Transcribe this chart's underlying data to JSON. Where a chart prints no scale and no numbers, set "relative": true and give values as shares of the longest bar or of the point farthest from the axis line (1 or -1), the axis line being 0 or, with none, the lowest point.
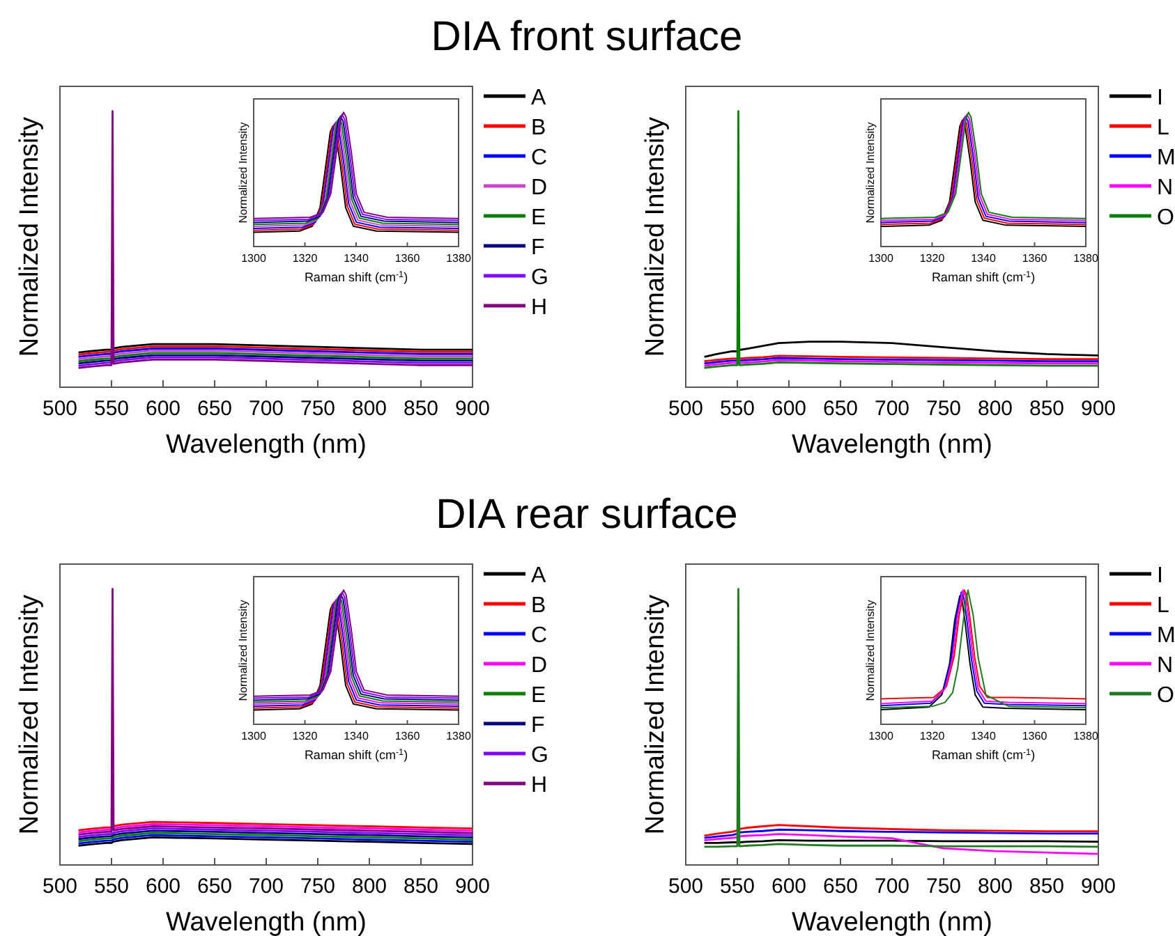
{
  "chart_data": [
    {
      "type": "line",
      "title": "DIA front surface",
      "xlabel": "Wavelength (nm)",
      "ylabel": "Normalized Intensity",
      "relative": true,
      "legend": "right",
      "xlim": [
        500,
        900
      ],
      "xticks": [
        500,
        550,
        600,
        650,
        700,
        750,
        800,
        850,
        900
      ],
      "x": [
        518,
        530,
        545,
        550,
        551,
        552,
        560,
        575,
        590,
        620,
        650,
        700,
        750,
        800,
        850,
        900
      ],
      "series": [
        {
          "name": "A",
          "color": "#000000",
          "values": [
            0.126,
            0.131,
            0.136,
            0.136,
            null,
            0.141,
            0.146,
            0.151,
            0.156,
            0.156,
            0.156,
            0.151,
            0.146,
            0.141,
            0.136,
            0.136
          ]
        },
        {
          "name": "B",
          "color": "#ff0000",
          "values": [
            0.118,
            0.123,
            0.128,
            0.128,
            null,
            0.133,
            0.138,
            0.143,
            0.148,
            0.148,
            0.148,
            0.143,
            0.138,
            0.133,
            0.128,
            0.128
          ]
        },
        {
          "name": "C",
          "color": "#0000ff",
          "values": [
            0.11,
            0.115,
            0.12,
            0.12,
            null,
            0.125,
            0.13,
            0.135,
            0.14,
            0.14,
            0.14,
            0.135,
            0.13,
            0.125,
            0.12,
            0.12
          ]
        },
        {
          "name": "D",
          "color": "#cc44cc",
          "values": [
            0.102,
            0.107,
            0.112,
            0.112,
            null,
            0.117,
            0.122,
            0.127,
            0.132,
            0.132,
            0.132,
            0.127,
            0.122,
            0.117,
            0.112,
            0.112
          ]
        },
        {
          "name": "E",
          "color": "#008000",
          "values": [
            0.094,
            0.099,
            0.104,
            0.104,
            null,
            0.109,
            0.114,
            0.119,
            0.124,
            0.124,
            0.124,
            0.119,
            0.114,
            0.109,
            0.104,
            0.104
          ]
        },
        {
          "name": "F",
          "color": "#000080",
          "values": [
            0.086,
            0.091,
            0.096,
            0.096,
            null,
            0.101,
            0.106,
            0.111,
            0.116,
            0.116,
            0.116,
            0.111,
            0.106,
            0.101,
            0.096,
            0.096
          ]
        },
        {
          "name": "G",
          "color": "#8000ff",
          "values": [
            0.078,
            0.083,
            0.088,
            0.088,
            null,
            0.093,
            0.098,
            0.103,
            0.108,
            0.108,
            0.108,
            0.103,
            0.098,
            0.093,
            0.088,
            0.088
          ]
        },
        {
          "name": "H",
          "color": "#800080",
          "values": [
            0.07,
            0.075,
            0.08,
            0.08,
            1,
            0.085,
            0.09,
            0.095,
            0.1,
            0.1,
            0.1,
            0.095,
            0.09,
            0.085,
            0.08,
            0.08
          ]
        }
      ]
    },
    {
      "type": "line",
      "xlabel": "Raman shift (cm$^{-1}$)",
      "ylabel": "Normalized Intensity",
      "relative": true,
      "xlim": [
        1300,
        1380
      ],
      "xticks": [
        1300,
        1320,
        1340,
        1360,
        1380
      ],
      "series": [
        {
          "color": "#000000",
          "x": [
            1300,
            1317.9,
            1322.9,
            1325.9,
            1327.9,
            1329.9,
            1330.9,
            1331.9,
            1333.9,
            1335.9,
            1338.9,
            1347.9,
            1380
          ],
          "values": [
            0.106,
            0.115,
            0.152,
            0.29,
            0.566,
            0.851,
            0.897,
            0.86,
            0.603,
            0.29,
            0.152,
            0.115,
            0.106
          ]
        },
        {
          "color": "#ff0000",
          "x": [
            1300,
            1318.5,
            1323.5,
            1326.5,
            1328.5,
            1330.5,
            1331.5,
            1332.5,
            1334.5,
            1336.5,
            1339.5,
            1348.5,
            1380
          ],
          "values": [
            0.12,
            0.13,
            0.166,
            0.304,
            0.58,
            0.866,
            0.912,
            0.875,
            0.617,
            0.304,
            0.166,
            0.13,
            0.12
          ]
        },
        {
          "color": "#0000ff",
          "x": [
            1300,
            1319.1,
            1324.1,
            1327.1,
            1329.1,
            1331.1,
            1332.1,
            1333.1,
            1335.1,
            1337.1,
            1340.1,
            1349.1,
            1380
          ],
          "values": [
            0.135,
            0.144,
            0.181,
            0.319,
            0.595,
            0.88,
            0.926,
            0.89,
            0.632,
            0.319,
            0.181,
            0.144,
            0.135
          ]
        },
        {
          "color": "#cc44cc",
          "x": [
            1300,
            1319.7,
            1324.7,
            1327.7,
            1329.7,
            1331.7,
            1332.7,
            1333.7,
            1335.7,
            1337.7,
            1340.7,
            1349.7,
            1380
          ],
          "values": [
            0.15,
            0.159,
            0.196,
            0.334,
            0.61,
            0.895,
            0.941,
            0.904,
            0.647,
            0.334,
            0.196,
            0.159,
            0.15
          ]
        },
        {
          "color": "#008000",
          "x": [
            1300,
            1320.3,
            1325.3,
            1328.3,
            1330.3,
            1332.3,
            1333.3,
            1334.3,
            1336.3,
            1338.3,
            1341.3,
            1350.3,
            1380
          ],
          "values": [
            0.165,
            0.174,
            0.211,
            0.349,
            0.625,
            0.91,
            0.956,
            0.919,
            0.661,
            0.349,
            0.211,
            0.174,
            0.165
          ]
        },
        {
          "color": "#000080",
          "x": [
            1300,
            1320.9,
            1325.9,
            1328.9,
            1330.9,
            1332.9,
            1333.9,
            1334.9,
            1336.9,
            1338.9,
            1341.9,
            1350.9,
            1380
          ],
          "values": [
            0.179,
            0.189,
            0.225,
            0.363,
            0.639,
            0.925,
            0.971,
            0.934,
            0.676,
            0.363,
            0.225,
            0.189,
            0.179
          ]
        },
        {
          "color": "#8000ff",
          "x": [
            1300,
            1321.5,
            1326.5,
            1329.5,
            1331.5,
            1333.5,
            1334.5,
            1335.5,
            1337.5,
            1339.5,
            1342.5,
            1351.5,
            1380
          ],
          "values": [
            0.194,
            0.203,
            0.24,
            0.378,
            0.654,
            0.939,
            0.985,
            0.948,
            0.691,
            0.378,
            0.24,
            0.203,
            0.194
          ]
        },
        {
          "color": "#800080",
          "x": [
            1300,
            1322.1,
            1327.1,
            1330.1,
            1332.1,
            1334.1,
            1335.1,
            1336.1,
            1338.1,
            1340.1,
            1343.1,
            1352.1,
            1380
          ],
          "values": [
            0.209,
            0.218,
            0.255,
            0.393,
            0.669,
            0.954,
            1,
            0.963,
            0.706,
            0.393,
            0.255,
            0.218,
            0.209
          ]
        }
      ]
    },
    {
      "type": "line",
      "xlabel": "Wavelength (nm)",
      "ylabel": "Normalized Intensity",
      "relative": true,
      "legend": "right",
      "xlim": [
        500,
        900
      ],
      "xticks": [
        500,
        550,
        600,
        650,
        700,
        750,
        800,
        850,
        900
      ],
      "x": [
        518,
        530,
        545,
        550,
        551,
        552,
        560,
        575,
        590,
        620,
        650,
        700,
        750,
        800,
        850,
        900
      ],
      "series": [
        {
          "name": "I",
          "color": "#000000",
          "values": [
            0.11,
            0.12,
            0.13,
            0.13,
            null,
            0.135,
            0.14,
            0.15,
            0.16,
            0.165,
            0.165,
            0.16,
            0.145,
            0.13,
            0.12,
            0.115
          ]
        },
        {
          "name": "L",
          "color": "#ff0000",
          "values": [
            0.094,
            0.099,
            0.104,
            0.104,
            null,
            0.104,
            0.106,
            0.109,
            0.114,
            0.112,
            0.11,
            0.108,
            0.106,
            0.104,
            0.102,
            0.102
          ]
        },
        {
          "name": "M",
          "color": "#0000ff",
          "values": [
            0.086,
            0.091,
            0.096,
            0.096,
            null,
            0.096,
            0.098,
            0.101,
            0.106,
            0.104,
            0.102,
            0.1,
            0.098,
            0.096,
            0.094,
            0.094
          ]
        },
        {
          "name": "N",
          "color": "#ff00ff",
          "values": [
            0.078,
            0.083,
            0.088,
            0.088,
            null,
            0.088,
            0.09,
            0.093,
            0.098,
            0.096,
            0.094,
            0.092,
            0.09,
            0.088,
            0.086,
            0.086
          ]
        },
        {
          "name": "O",
          "color": "#008000",
          "values": [
            0.07,
            0.075,
            0.08,
            0.08,
            1,
            0.08,
            0.082,
            0.085,
            0.09,
            0.088,
            0.086,
            0.084,
            0.082,
            0.08,
            0.078,
            0.078
          ]
        }
      ]
    },
    {
      "type": "line",
      "xlabel": "Raman shift (cm$^{-1}$)",
      "ylabel": "Normalized Intensity",
      "relative": true,
      "xlim": [
        1300,
        1380
      ],
      "xticks": [
        1300,
        1320,
        1340,
        1360,
        1380
      ],
      "series": [
        {
          "color": "#000000",
          "x": [
            1300,
            1318.8,
            1323.8,
            1326.8,
            1328.8,
            1330.8,
            1331.8,
            1332.8,
            1334.8,
            1336.8,
            1339.8,
            1348.8,
            1380
          ],
          "values": [
            0.15,
            0.159,
            0.196,
            0.334,
            0.61,
            0.895,
            0.941,
            0.904,
            0.647,
            0.334,
            0.196,
            0.159,
            0.15
          ]
        },
        {
          "color": "#ff0000",
          "x": [
            1300,
            1319.4,
            1324.4,
            1327.4,
            1329.4,
            1331.4,
            1332.4,
            1333.4,
            1335.4,
            1337.4,
            1340.4,
            1349.4,
            1380
          ],
          "values": [
            0.165,
            0.174,
            0.211,
            0.349,
            0.625,
            0.91,
            0.956,
            0.919,
            0.661,
            0.349,
            0.211,
            0.174,
            0.165
          ]
        },
        {
          "color": "#0000ff",
          "x": [
            1300,
            1320,
            1325,
            1328,
            1330,
            1332,
            1333,
            1334,
            1336,
            1338,
            1341,
            1350,
            1380
          ],
          "values": [
            0.179,
            0.189,
            0.225,
            0.363,
            0.639,
            0.925,
            0.971,
            0.934,
            0.676,
            0.363,
            0.225,
            0.189,
            0.179
          ]
        },
        {
          "color": "#ff00ff",
          "x": [
            1300,
            1320.6,
            1325.6,
            1328.6,
            1330.6,
            1332.6,
            1333.6,
            1334.6,
            1336.6,
            1338.6,
            1341.6,
            1350.6,
            1380
          ],
          "values": [
            0.194,
            0.203,
            0.24,
            0.378,
            0.654,
            0.939,
            0.985,
            0.948,
            0.691,
            0.378,
            0.24,
            0.203,
            0.194
          ]
        },
        {
          "color": "#008000",
          "x": [
            1300,
            1321.2,
            1326.2,
            1329.2,
            1331.2,
            1333.2,
            1334.2,
            1335.2,
            1337.2,
            1339.2,
            1342.2,
            1351.2,
            1380
          ],
          "values": [
            0.209,
            0.218,
            0.255,
            0.393,
            0.669,
            0.954,
            1,
            0.963,
            0.706,
            0.393,
            0.255,
            0.218,
            0.209
          ]
        }
      ]
    },
    {
      "type": "line",
      "title": "DIA rear surface",
      "xlabel": "Wavelength (nm)",
      "ylabel": "Normalized Intensity",
      "relative": true,
      "legend": "right",
      "xlim": [
        500,
        900
      ],
      "xticks": [
        500,
        550,
        600,
        650,
        700,
        750,
        800,
        850,
        900
      ],
      "x": [
        518,
        530,
        545,
        550,
        551,
        552,
        560,
        575,
        590,
        620,
        650,
        700,
        750,
        800,
        850,
        900
      ],
      "series": [
        {
          "name": "A",
          "color": "#000000",
          "values": [
            0.07,
            0.075,
            0.08,
            0.08,
            null,
            0.085,
            0.09,
            0.095,
            0.1,
            0.098,
            0.096,
            0.092,
            0.088,
            0.084,
            0.08,
            0.076
          ]
        },
        {
          "name": "B",
          "color": "#ff0000",
          "values": [
            0.126,
            0.131,
            0.136,
            0.136,
            null,
            0.141,
            0.146,
            0.151,
            0.156,
            0.154,
            0.152,
            0.148,
            0.144,
            0.14,
            0.136,
            0.132
          ]
        },
        {
          "name": "C",
          "color": "#0000ff",
          "values": [
            0.078,
            0.083,
            0.088,
            0.088,
            null,
            0.093,
            0.098,
            0.103,
            0.108,
            0.106,
            0.104,
            0.1,
            0.096,
            0.092,
            0.088,
            0.084
          ]
        },
        {
          "name": "D",
          "color": "#ff00ff",
          "values": [
            0.118,
            0.123,
            0.128,
            0.128,
            null,
            0.133,
            0.138,
            0.143,
            0.148,
            0.146,
            0.144,
            0.14,
            0.136,
            0.132,
            0.128,
            0.124
          ]
        },
        {
          "name": "E",
          "color": "#008000",
          "values": [
            0.086,
            0.091,
            0.096,
            0.096,
            null,
            0.101,
            0.106,
            0.111,
            0.116,
            0.114,
            0.112,
            0.108,
            0.104,
            0.1,
            0.096,
            0.092
          ]
        },
        {
          "name": "F",
          "color": "#000080",
          "values": [
            0.094,
            0.099,
            0.104,
            0.104,
            null,
            0.109,
            0.114,
            0.119,
            0.124,
            0.122,
            0.12,
            0.116,
            0.112,
            0.108,
            0.104,
            0.1
          ]
        },
        {
          "name": "G",
          "color": "#8000ff",
          "values": [
            0.102,
            0.107,
            0.112,
            0.112,
            null,
            0.117,
            0.122,
            0.127,
            0.132,
            0.13,
            0.128,
            0.124,
            0.12,
            0.116,
            0.112,
            0.108
          ]
        },
        {
          "name": "H",
          "color": "#800080",
          "values": [
            0.11,
            0.115,
            0.12,
            0.12,
            1,
            0.125,
            0.13,
            0.135,
            0.14,
            0.138,
            0.136,
            0.132,
            0.128,
            0.124,
            0.12,
            0.116
          ]
        }
      ]
    },
    {
      "type": "line",
      "xlabel": "Raman shift (cm$^{-1}$)",
      "ylabel": "Normalized Intensity",
      "relative": true,
      "xlim": [
        1300,
        1380
      ],
      "xticks": [
        1300,
        1320,
        1340,
        1360,
        1380
      ],
      "series": [
        {
          "color": "#000000",
          "x": [
            1300,
            1317.9,
            1322.9,
            1325.9,
            1327.9,
            1329.9,
            1330.9,
            1331.9,
            1333.9,
            1335.9,
            1338.9,
            1347.9,
            1380
          ],
          "values": [
            0.106,
            0.115,
            0.152,
            0.29,
            0.566,
            0.851,
            0.897,
            0.86,
            0.603,
            0.29,
            0.152,
            0.115,
            0.106
          ]
        },
        {
          "color": "#ff0000",
          "x": [
            1300,
            1318.5,
            1323.5,
            1326.5,
            1328.5,
            1330.5,
            1331.5,
            1332.5,
            1334.5,
            1336.5,
            1339.5,
            1348.5,
            1380
          ],
          "values": [
            0.12,
            0.13,
            0.166,
            0.304,
            0.58,
            0.866,
            0.912,
            0.875,
            0.617,
            0.304,
            0.166,
            0.13,
            0.12
          ]
        },
        {
          "color": "#0000ff",
          "x": [
            1300,
            1319.1,
            1324.1,
            1327.1,
            1329.1,
            1331.1,
            1332.1,
            1333.1,
            1335.1,
            1337.1,
            1340.1,
            1349.1,
            1380
          ],
          "values": [
            0.135,
            0.144,
            0.181,
            0.319,
            0.595,
            0.88,
            0.926,
            0.89,
            0.632,
            0.319,
            0.181,
            0.144,
            0.135
          ]
        },
        {
          "color": "#ff00ff",
          "x": [
            1300,
            1319.7,
            1324.7,
            1327.7,
            1329.7,
            1331.7,
            1332.7,
            1333.7,
            1335.7,
            1337.7,
            1340.7,
            1349.7,
            1380
          ],
          "values": [
            0.15,
            0.159,
            0.196,
            0.334,
            0.61,
            0.895,
            0.941,
            0.904,
            0.647,
            0.334,
            0.196,
            0.159,
            0.15
          ]
        },
        {
          "color": "#008000",
          "x": [
            1300,
            1320.3,
            1325.3,
            1328.3,
            1330.3,
            1332.3,
            1333.3,
            1334.3,
            1336.3,
            1338.3,
            1341.3,
            1350.3,
            1380
          ],
          "values": [
            0.165,
            0.174,
            0.211,
            0.349,
            0.625,
            0.91,
            0.956,
            0.919,
            0.661,
            0.349,
            0.211,
            0.174,
            0.165
          ]
        },
        {
          "color": "#000080",
          "x": [
            1300,
            1320.9,
            1325.9,
            1328.9,
            1330.9,
            1332.9,
            1333.9,
            1334.9,
            1336.9,
            1338.9,
            1341.9,
            1350.9,
            1380
          ],
          "values": [
            0.179,
            0.189,
            0.225,
            0.363,
            0.639,
            0.925,
            0.971,
            0.934,
            0.676,
            0.363,
            0.225,
            0.189,
            0.179
          ]
        },
        {
          "color": "#8000ff",
          "x": [
            1300,
            1321.5,
            1326.5,
            1329.5,
            1331.5,
            1333.5,
            1334.5,
            1335.5,
            1337.5,
            1339.5,
            1342.5,
            1351.5,
            1380
          ],
          "values": [
            0.194,
            0.203,
            0.24,
            0.378,
            0.654,
            0.939,
            0.985,
            0.948,
            0.691,
            0.378,
            0.24,
            0.203,
            0.194
          ]
        },
        {
          "color": "#800080",
          "x": [
            1300,
            1322.1,
            1327.1,
            1330.1,
            1332.1,
            1334.1,
            1335.1,
            1336.1,
            1338.1,
            1340.1,
            1343.1,
            1352.1,
            1380
          ],
          "values": [
            0.209,
            0.218,
            0.255,
            0.393,
            0.669,
            0.954,
            1,
            0.963,
            0.706,
            0.393,
            0.255,
            0.218,
            0.209
          ]
        }
      ]
    },
    {
      "type": "line",
      "xlabel": "Wavelength (nm)",
      "ylabel": "Normalized Intensity",
      "relative": true,
      "legend": "right",
      "xlim": [
        500,
        900
      ],
      "xticks": [
        500,
        550,
        600,
        650,
        700,
        750,
        800,
        850,
        900
      ],
      "x": [
        518,
        530,
        545,
        550,
        551,
        552,
        560,
        575,
        590,
        620,
        650,
        700,
        750,
        800,
        850,
        900
      ],
      "series": [
        {
          "name": "I",
          "color": "#000000",
          "values": [
            0.08,
            0.08,
            0.082,
            0.082,
            null,
            0.082,
            0.084,
            0.086,
            0.09,
            0.088,
            0.088,
            0.088,
            0.086,
            0.086,
            0.086,
            0.084
          ]
        },
        {
          "name": "L",
          "color": "#ff0000",
          "values": [
            0.106,
            0.113,
            0.12,
            0.125,
            null,
            0.13,
            0.135,
            0.14,
            0.145,
            0.14,
            0.135,
            0.13,
            0.126,
            0.124,
            0.122,
            0.122
          ]
        },
        {
          "name": "M",
          "color": "#0000ff",
          "values": [
            0.098,
            0.103,
            0.108,
            0.113,
            null,
            0.118,
            0.12,
            0.123,
            0.128,
            0.126,
            0.123,
            0.12,
            0.118,
            0.116,
            0.114,
            0.114
          ]
        },
        {
          "name": "N",
          "color": "#ff00ff",
          "values": [
            0.089,
            0.094,
            0.098,
            0.1,
            null,
            0.104,
            0.106,
            0.108,
            0.112,
            0.108,
            0.103,
            0.097,
            0.06,
            0.05,
            0.045,
            0.04
          ]
        },
        {
          "name": "O",
          "color": "#1e7b1e",
          "values": [
            0.066,
            0.066,
            0.068,
            0.068,
            1,
            0.068,
            0.07,
            0.072,
            0.076,
            0.072,
            0.07,
            0.07,
            0.068,
            0.068,
            0.068,
            0.066
          ]
        }
      ]
    },
    {
      "type": "line",
      "xlabel": "Raman shift (cm$^{-1}$)",
      "ylabel": "Normalized Intensity",
      "relative": true,
      "xlim": [
        1300,
        1380
      ],
      "xticks": [
        1300,
        1320,
        1340,
        1360,
        1380
      ],
      "series": [
        {
          "color": "#000000",
          "x": [
            1300,
            1318.8,
            1323.8,
            1326.8,
            1328.8,
            1330.8,
            1331.8,
            1332.8,
            1334.8,
            1336.8,
            1339.8,
            1348.8,
            1380
          ],
          "values": [
            0.109,
            0.128,
            0.22,
            0.45,
            0.772,
            0.956,
            0.91,
            0.772,
            0.45,
            0.22,
            0.128,
            0.119,
            0.109
          ]
        },
        {
          "color": "#ff0000",
          "x": [
            1300,
            1320.6,
            1325.6,
            1328.6,
            1330.6,
            1332.6,
            1333.6,
            1334.6,
            1336.6,
            1338.6,
            1341.6,
            1350.6,
            1380
          ],
          "values": [
            0.19,
            0.2,
            0.282,
            0.503,
            0.816,
            1,
            0.954,
            0.816,
            0.503,
            0.282,
            0.2,
            0.2,
            0.19
          ]
        },
        {
          "color": "#0000ff",
          "x": [
            1300,
            1319.4,
            1324.4,
            1327.4,
            1329.4,
            1331.4,
            1332.4,
            1333.4,
            1335.4,
            1337.4,
            1340.4,
            1349.4,
            1380
          ],
          "values": [
            0.139,
            0.157,
            0.249,
            0.479,
            0.801,
            0.985,
            0.939,
            0.801,
            0.479,
            0.249,
            0.157,
            0.148,
            0.139
          ]
        },
        {
          "color": "#ff00ff",
          "x": [
            1300,
            1320,
            1325,
            1328,
            1330,
            1332,
            1333,
            1334,
            1336,
            1338,
            1341,
            1350,
            1380
          ],
          "values": [
            0.154,
            0.172,
            0.264,
            0.494,
            0.816,
            1,
            0.954,
            0.816,
            0.494,
            0.264,
            0.172,
            0.163,
            0.154
          ]
        },
        {
          "color": "#1e7b1e",
          "x": [
            1300,
            1320,
            1325,
            1328,
            1330,
            1332,
            1333,
            1334,
            1336,
            1338,
            1341,
            1350,
            1380
          ],
          "values": [
            0.124,
            0.133,
            0.163,
            0.236,
            0.42,
            0.742,
            0.899,
            1,
            0.816,
            0.494,
            0.218,
            0.133,
            0.124
          ]
        }
      ]
    }
  ]
}
